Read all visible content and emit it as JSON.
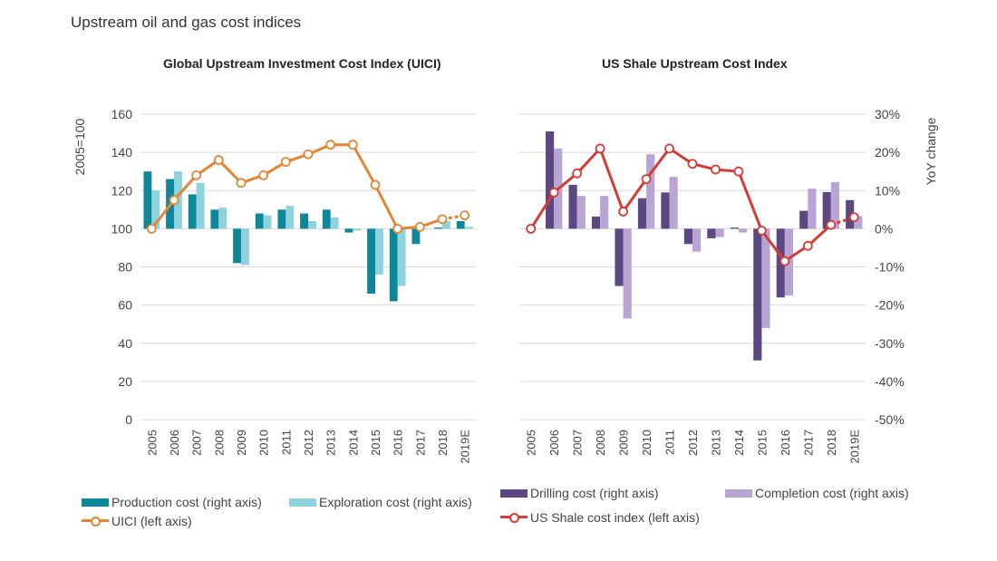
{
  "page": {
    "title": "Upstream oil and gas cost indices"
  },
  "colors": {
    "production": "#0d8799",
    "exploration": "#8ed2de",
    "uici": "#e58532",
    "drilling": "#5b4882",
    "completion": "#b9a5d4",
    "shale": "#d63c35",
    "grid": "#d9d9d9",
    "axis_text": "#444444"
  },
  "chart_data": [
    {
      "type": "bar",
      "title": "Global Upstream Investment Cost Index (UICI)",
      "categories": [
        "2005",
        "2006",
        "2007",
        "2008",
        "2009",
        "2010",
        "2011",
        "2012",
        "2013",
        "2014",
        "2015",
        "2016",
        "2017",
        "2018",
        "2019E"
      ],
      "ylabel": "2005=100",
      "ylim": [
        0,
        160
      ],
      "yticks": [
        "0",
        "20",
        "40",
        "60",
        "80",
        "100",
        "120",
        "140",
        "160"
      ],
      "y2lim": [
        -0.5,
        0.3
      ],
      "grid": true,
      "series": [
        {
          "name": "Production cost (right axis)",
          "axis": "right",
          "kind": "bar",
          "values": [
            0.15,
            0.13,
            0.09,
            0.05,
            -0.09,
            0.04,
            0.05,
            0.04,
            0.05,
            -0.01,
            -0.17,
            -0.19,
            -0.04,
            0.003,
            0.02
          ]
        },
        {
          "name": "Exploration cost (right axis)",
          "axis": "right",
          "kind": "bar",
          "values": [
            0.1,
            0.15,
            0.12,
            0.055,
            -0.095,
            0.035,
            0.06,
            0.02,
            0.03,
            -0.005,
            -0.12,
            -0.15,
            0.0,
            0.02,
            0.005
          ]
        },
        {
          "name": "UICI (left axis)",
          "axis": "left",
          "kind": "line",
          "dashed_last": true,
          "values": [
            100,
            115,
            128,
            136,
            124,
            128,
            135,
            139,
            144,
            144,
            123,
            100,
            101,
            105,
            107
          ]
        }
      ]
    },
    {
      "type": "bar",
      "title": "US Shale Upstream Cost Index",
      "categories": [
        "2005",
        "2006",
        "2007",
        "2008",
        "2009",
        "2010",
        "2011",
        "2012",
        "2013",
        "2014",
        "2015",
        "2016",
        "2017",
        "2018",
        "2019E"
      ],
      "ylabel": "YoY change",
      "ylim": [
        0,
        160
      ],
      "y2lim": [
        -0.5,
        0.3
      ],
      "y2ticks": [
        "30%",
        "20%",
        "10%",
        "0%",
        "-10%",
        "-20%",
        "-30%",
        "-40%",
        "-50%"
      ],
      "grid": true,
      "series": [
        {
          "name": "Drilling cost (right axis)",
          "axis": "right",
          "kind": "bar",
          "values": [
            null,
            0.255,
            0.115,
            0.032,
            -0.15,
            0.08,
            0.095,
            -0.04,
            -0.025,
            0.003,
            -0.345,
            -0.18,
            0.047,
            0.096,
            0.075
          ]
        },
        {
          "name": "Completion cost (right axis)",
          "axis": "right",
          "kind": "bar",
          "values": [
            null,
            0.21,
            0.086,
            0.086,
            -0.235,
            0.195,
            0.136,
            -0.06,
            -0.022,
            -0.01,
            -0.26,
            -0.175,
            0.105,
            0.122,
            0.033
          ]
        },
        {
          "name": "US Shale cost index (left axis)",
          "axis": "left",
          "kind": "line",
          "dashed_last": true,
          "values": [
            100,
            119,
            129,
            142,
            109,
            126,
            142,
            134,
            131,
            130,
            99,
            83,
            91,
            102,
            106
          ]
        }
      ]
    }
  ]
}
